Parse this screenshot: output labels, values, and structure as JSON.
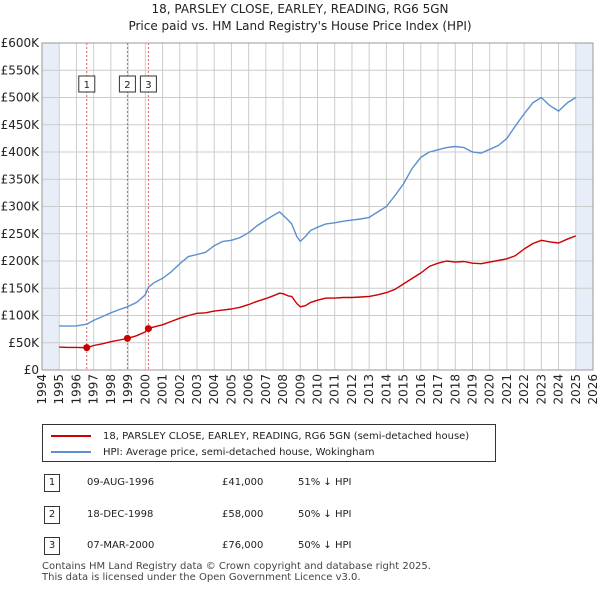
{
  "title": "18, PARSLEY CLOSE, EARLEY, READING, RG6 5GN",
  "subtitle": "Price paid vs. HM Land Registry's House Price Index (HPI)",
  "colors": {
    "property": "#cc0000",
    "hpi": "#5b8fd0",
    "shade": "#e8eef7",
    "grid": "#cccccc"
  },
  "chart_data": {
    "type": "line",
    "x_range": [
      1994,
      2026
    ],
    "ylim": [
      0,
      600000
    ],
    "y_ticks": [
      0,
      50000,
      100000,
      150000,
      200000,
      250000,
      300000,
      350000,
      400000,
      450000,
      500000,
      550000,
      600000
    ],
    "y_tick_labels": [
      "£0",
      "£50K",
      "£100K",
      "£150K",
      "£200K",
      "£250K",
      "£300K",
      "£350K",
      "£400K",
      "£450K",
      "£500K",
      "£550K",
      "£600K"
    ],
    "x_ticks": [
      1994,
      1995,
      1996,
      1997,
      1998,
      1999,
      2000,
      2001,
      2002,
      2003,
      2004,
      2005,
      2006,
      2007,
      2008,
      2009,
      2010,
      2011,
      2012,
      2013,
      2014,
      2015,
      2016,
      2017,
      2018,
      2019,
      2020,
      2021,
      2022,
      2023,
      2024,
      2025,
      2026
    ],
    "x_tick_labels": [
      "1994",
      "1995",
      "1996",
      "1997",
      "1998",
      "1999",
      "2000",
      "2001",
      "2002",
      "2003",
      "2004",
      "2005",
      "2006",
      "2007",
      "2008",
      "2009",
      "2010",
      "2011",
      "2012",
      "2013",
      "2014",
      "2015",
      "2016",
      "2017",
      "2018",
      "2019",
      "2020",
      "2021",
      "2022",
      "2023",
      "2024",
      "2025",
      "2026"
    ],
    "shaded_spans": [
      [
        1994,
        1995.0
      ],
      [
        2025.0,
        2026
      ]
    ],
    "series": [
      {
        "name": "18, PARSLEY CLOSE, EARLEY, READING, RG6 5GN (semi-detached house)",
        "color": "#cc0000",
        "x": [
          1995.0,
          1995.5,
          1996.0,
          1996.6,
          1997.0,
          1997.5,
          1998.0,
          1998.5,
          1998.96,
          1999.5,
          2000.0,
          2000.18,
          2000.5,
          2001.0,
          2001.5,
          2002.0,
          2002.5,
          2003.0,
          2003.5,
          2004.0,
          2004.5,
          2005.0,
          2005.5,
          2006.0,
          2006.5,
          2007.0,
          2007.5,
          2007.8,
          2008.0,
          2008.3,
          2008.5,
          2008.8,
          2009.0,
          2009.3,
          2009.6,
          2010.0,
          2010.5,
          2011.0,
          2011.5,
          2012.0,
          2012.5,
          2013.0,
          2013.5,
          2014.0,
          2014.5,
          2015.0,
          2015.5,
          2016.0,
          2016.5,
          2017.0,
          2017.5,
          2018.0,
          2018.5,
          2019.0,
          2019.5,
          2020.0,
          2020.5,
          2021.0,
          2021.5,
          2022.0,
          2022.5,
          2023.0,
          2023.5,
          2024.0,
          2024.5,
          2025.0
        ],
        "y": [
          42000,
          41500,
          41500,
          41000,
          45000,
          48000,
          52000,
          55000,
          58000,
          63000,
          70000,
          76000,
          79000,
          83000,
          89000,
          95000,
          100000,
          104000,
          105000,
          108000,
          110000,
          112000,
          115000,
          120000,
          126000,
          131000,
          137000,
          141000,
          140000,
          136000,
          135000,
          122000,
          116000,
          118000,
          124000,
          128000,
          132000,
          132000,
          133000,
          133000,
          134000,
          135000,
          138000,
          142000,
          148000,
          158000,
          168000,
          178000,
          190000,
          196000,
          200000,
          198000,
          199000,
          196000,
          195000,
          198000,
          201000,
          204000,
          210000,
          222000,
          232000,
          238000,
          235000,
          233000,
          240000,
          246000
        ]
      },
      {
        "name": "HPI: Average price, semi-detached house, Wokingham",
        "color": "#5b8fd0",
        "x": [
          1995.0,
          1995.5,
          1996.0,
          1996.6,
          1997.0,
          1997.5,
          1998.0,
          1998.5,
          1998.96,
          1999.5,
          2000.0,
          2000.18,
          2000.5,
          2001.0,
          2001.5,
          2002.0,
          2002.5,
          2003.0,
          2003.5,
          2004.0,
          2004.5,
          2005.0,
          2005.5,
          2006.0,
          2006.5,
          2007.0,
          2007.5,
          2007.8,
          2008.0,
          2008.3,
          2008.5,
          2008.8,
          2009.0,
          2009.3,
          2009.6,
          2010.0,
          2010.5,
          2011.0,
          2011.5,
          2012.0,
          2012.5,
          2013.0,
          2013.5,
          2014.0,
          2014.5,
          2015.0,
          2015.5,
          2016.0,
          2016.5,
          2017.0,
          2017.5,
          2018.0,
          2018.5,
          2019.0,
          2019.5,
          2020.0,
          2020.5,
          2021.0,
          2021.5,
          2022.0,
          2022.5,
          2023.0,
          2023.5,
          2024.0,
          2024.5,
          2025.0
        ],
        "y": [
          81000,
          80500,
          81000,
          84000,
          91000,
          98000,
          105000,
          111000,
          116000,
          124000,
          138000,
          152000,
          160000,
          168000,
          180000,
          195000,
          208000,
          212000,
          216000,
          228000,
          236000,
          238000,
          243000,
          252000,
          265000,
          275000,
          285000,
          290000,
          284000,
          275000,
          268000,
          245000,
          236000,
          245000,
          256000,
          262000,
          268000,
          270000,
          273000,
          275000,
          277000,
          280000,
          290000,
          300000,
          320000,
          342000,
          370000,
          390000,
          400000,
          404000,
          408000,
          410000,
          408000,
          400000,
          398000,
          405000,
          412000,
          425000,
          448000,
          470000,
          490000,
          500000,
          485000,
          475000,
          490000,
          500000
        ]
      }
    ],
    "transactions": [
      {
        "id": "1",
        "x": 1996.6,
        "price": 41000
      },
      {
        "id": "2",
        "x": 1998.96,
        "price": 58000
      },
      {
        "id": "3",
        "x": 2000.18,
        "price": 76000
      }
    ]
  },
  "legend": {
    "property_label": "18, PARSLEY CLOSE, EARLEY, READING, RG6 5GN (semi-detached house)",
    "hpi_label": "HPI: Average price, semi-detached house, Wokingham"
  },
  "table": [
    {
      "num": "1",
      "date": "09-AUG-1996",
      "price": "£41,000",
      "hpi": "51% ↓ HPI"
    },
    {
      "num": "2",
      "date": "18-DEC-1998",
      "price": "£58,000",
      "hpi": "50% ↓ HPI"
    },
    {
      "num": "3",
      "date": "07-MAR-2000",
      "price": "£76,000",
      "hpi": "50% ↓ HPI"
    }
  ],
  "footer": {
    "line1": "Contains HM Land Registry data © Crown copyright and database right 2025.",
    "line2": "This data is licensed under the Open Government Licence v3.0."
  }
}
